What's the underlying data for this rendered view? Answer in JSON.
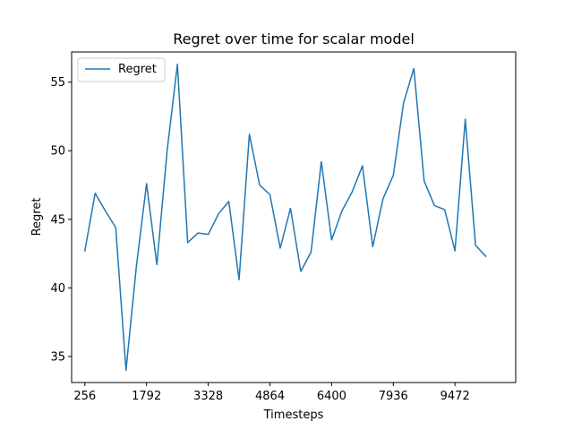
{
  "chart_data": {
    "type": "line",
    "title": "Regret over time for scalar model",
    "xlabel": "Timesteps",
    "ylabel": "Regret",
    "xlim": [
      -74,
      10984
    ],
    "ylim": [
      33.1,
      57.2
    ],
    "xticks": [
      256,
      1792,
      3328,
      4864,
      6400,
      7936,
      9472
    ],
    "yticks": [
      35,
      40,
      45,
      50,
      55
    ],
    "grid": false,
    "legend_position": "top-left",
    "series": [
      {
        "name": "Regret",
        "color": "#1f77b4",
        "x": [
          256,
          512,
          768,
          1024,
          1280,
          1536,
          1792,
          2048,
          2304,
          2560,
          2816,
          3072,
          3328,
          3584,
          3840,
          4096,
          4352,
          4608,
          4864,
          5120,
          5376,
          5632,
          5888,
          6144,
          6400,
          6656,
          6912,
          7168,
          7424,
          7680,
          7936,
          8192,
          8448,
          8704,
          8960,
          9216,
          9472,
          9728,
          9984,
          10240
        ],
        "y": [
          42.7,
          46.9,
          45.6,
          44.4,
          34.0,
          41.5,
          47.6,
          41.7,
          50.0,
          56.3,
          43.3,
          44.0,
          43.9,
          45.4,
          46.3,
          40.6,
          51.2,
          47.5,
          46.8,
          42.9,
          45.8,
          41.2,
          42.6,
          49.2,
          43.5,
          45.6,
          47.0,
          48.9,
          43.0,
          46.5,
          48.2,
          53.5,
          56.0,
          47.8,
          46.0,
          45.7,
          42.7,
          52.3,
          43.1,
          42.3
        ]
      }
    ]
  }
}
